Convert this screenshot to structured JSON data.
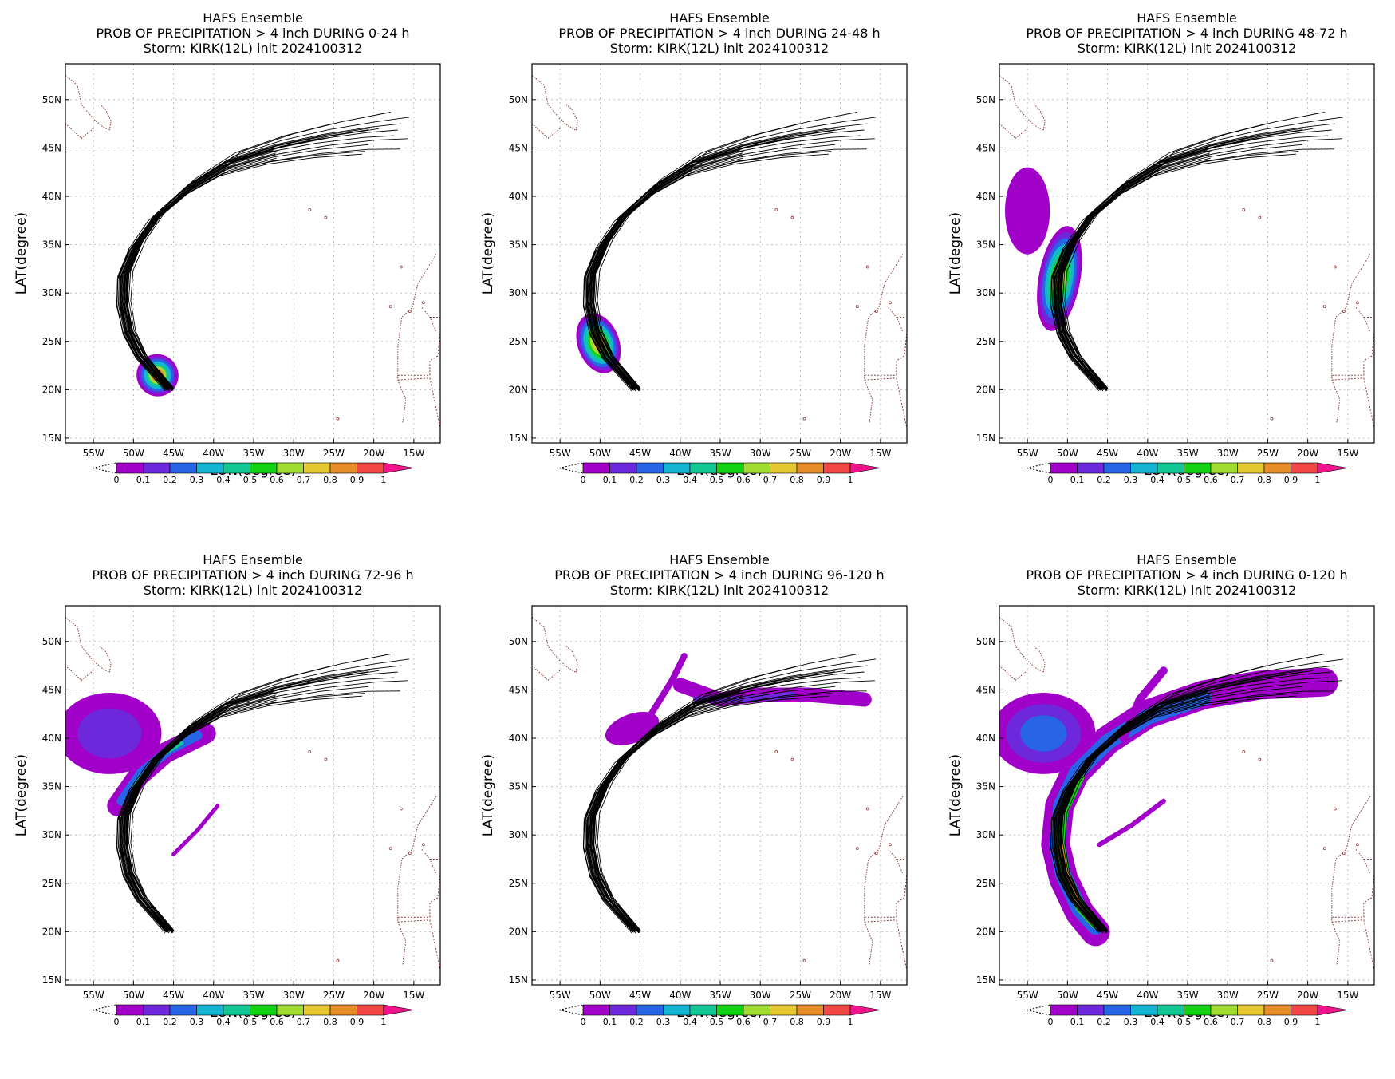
{
  "title_line1": "HAFS Ensemble",
  "storm_line": "Storm: KIRK(12L) init 2024100312",
  "xlabel": "LON(degree)",
  "ylabel": "LAT(degree)",
  "lon_ticks": [
    "55W",
    "50W",
    "45W",
    "40W",
    "35W",
    "30W",
    "25W",
    "20W",
    "15W"
  ],
  "lat_ticks": [
    "15N",
    "20N",
    "25N",
    "30N",
    "35N",
    "40N",
    "45N",
    "50N"
  ],
  "colorbar": {
    "labels": [
      "0",
      "0.1",
      "0.2",
      "0.3",
      "0.4",
      "0.5",
      "0.6",
      "0.7",
      "0.8",
      "0.9",
      "1"
    ],
    "colors": [
      "#a000c8",
      "#6e28dc",
      "#2864e6",
      "#14b4d2",
      "#14c896",
      "#14d214",
      "#a0dc32",
      "#e6c832",
      "#e68c28",
      "#f04646",
      "#f0148c"
    ]
  },
  "colors": {
    "track": "#000000",
    "coast": "#8b3a3a",
    "grid": "#b4b4b4"
  },
  "panels": [
    {
      "title_line2": "PROB OF PRECIPITATION > 4 inch DURING  0-24 h"
    },
    {
      "title_line2": "PROB OF PRECIPITATION > 4 inch DURING 24-48 h"
    },
    {
      "title_line2": "PROB OF PRECIPITATION > 4 inch DURING 48-72 h"
    },
    {
      "title_line2": "PROB OF PRECIPITATION > 4 inch DURING 72-96 h"
    },
    {
      "title_line2": "PROB OF PRECIPITATION > 4 inch DURING 96-120 h"
    },
    {
      "title_line2": "PROB OF PRECIPITATION > 4 inch DURING 0-120 h"
    }
  ]
}
